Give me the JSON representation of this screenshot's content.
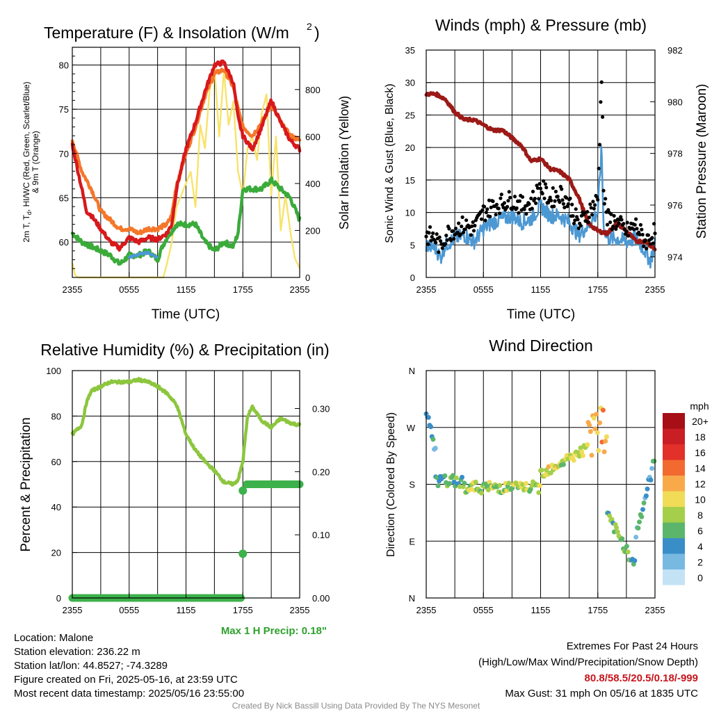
{
  "panels": {
    "temp": {
      "title": "Temperature (F) & Insolation (W/m²)",
      "left_label": "2m T, Td, HI/WC (Red, Green, Scarlet/Blue) & 9m T (Orange)",
      "left_label_line1": "2m T, T",
      "left_label_sub": "d",
      "left_label_rest": ", HI/WC (Red, Green, Scarlet/Blue)",
      "left_label_line2": "& 9m T (Orange)",
      "right_label": "Solar Insolation (Yellow)",
      "xlabel": "Time (UTC)"
    },
    "wind": {
      "title": "Winds (mph) & Pressure (mb)",
      "left_label": "Sonic Wind & Gust (Blue, Black)",
      "right_label": "Station Pressure (Maroon)",
      "xlabel": "Time (UTC)"
    },
    "rh": {
      "title": "Relative Humidity (%) & Precipitation (in)",
      "left_label": "Percent & Precipitation",
      "max_precip": "Max 1 H Precip: 0.18\""
    },
    "dir": {
      "title": "Wind Direction",
      "left_label": "Direction (Colored By Speed)",
      "legend_title": "mph"
    }
  },
  "footer": {
    "location": "Location: Malone",
    "elevation": "Station elevation: 236.22 m",
    "latlon": "Station lat/lon: 44.8527; -74.3289",
    "created": "Figure created on Fri, 2025-05-16, at 23:59 UTC",
    "recent": "Most recent data timestamp: 2025/05/16 23:55:00",
    "extremes_title": "Extremes For Past 24 Hours",
    "extremes_sub": "(High/Low/Max Wind/Precipitation/Snow Depth)",
    "extremes_values": "80.8/58.5/20.5/0.18/-999",
    "max_gust": "Max Gust: 31 mph On 05/16 at 1835 UTC",
    "credit": "Created By Nick Bassill Using Data Provided By The NYS Mesonet"
  },
  "colors": {
    "temp": "#d7191c",
    "temp9m": "#f4772a",
    "dewpoint": "#3aab3a",
    "solar": "#f7e36a",
    "wind": "#4c98d3",
    "gust": "#000000",
    "pressure": "#9b1a17",
    "rh": "#8cc63e",
    "precip": "#3db14b"
  },
  "chart_data": [
    {
      "type": "line",
      "panel": "temp",
      "title": "Temperature (F) & Insolation (W/m²)",
      "xlabel": "Time (UTC)",
      "ylabel": "2m T, Td, HI/WC (Red, Green, Scarlet/Blue) & 9m T (Orange)",
      "y2label": "Solar Insolation (Yellow)",
      "x_ticks": [
        "2355",
        "0555",
        "1155",
        "1755",
        "2355"
      ],
      "xlim": [
        0,
        24
      ],
      "ylim": [
        56,
        82
      ],
      "y_ticks": [
        60,
        65,
        70,
        75,
        80
      ],
      "y2lim": [
        0,
        980
      ],
      "y2_ticks": [
        0,
        200,
        400,
        600,
        800
      ],
      "grid": true,
      "series": [
        {
          "name": "2m T",
          "axis": "left",
          "x": [
            0,
            1,
            1.5,
            2,
            3,
            4,
            5,
            6,
            7,
            8,
            9,
            10,
            10.5,
            11,
            12,
            13,
            14,
            15,
            16,
            17,
            17.5,
            18,
            19,
            20,
            21,
            22,
            23,
            24
          ],
          "values": [
            71,
            66,
            63.5,
            63,
            61.5,
            60,
            59.3,
            60.5,
            60,
            60.5,
            60.3,
            61,
            62,
            66,
            70.5,
            73.5,
            77,
            80,
            80.3,
            78,
            74,
            72,
            70.5,
            73,
            76,
            73.5,
            71.5,
            70.5
          ]
        },
        {
          "name": "9m T",
          "axis": "left",
          "x": [
            0,
            1,
            2,
            3,
            4,
            5,
            6,
            7,
            8,
            9,
            10,
            10.5,
            11,
            12,
            13,
            14,
            15,
            16,
            17,
            17.5,
            18,
            19,
            20,
            21,
            22,
            23,
            24
          ],
          "values": [
            71.5,
            68,
            66,
            63.5,
            62.5,
            61.5,
            61.5,
            61,
            61.5,
            61.5,
            62,
            63,
            66.5,
            70,
            73,
            76.5,
            79,
            79.5,
            77.5,
            75,
            73,
            72,
            73.5,
            75.5,
            73.5,
            72,
            71.5
          ]
        },
        {
          "name": "Td",
          "axis": "left",
          "x": [
            0,
            1,
            2,
            3,
            4,
            5,
            6,
            7,
            8,
            9,
            9.5,
            10,
            11,
            12,
            13,
            14,
            15,
            16,
            17,
            17.5,
            18,
            19,
            20,
            21,
            22,
            23,
            24
          ],
          "values": [
            61,
            60,
            59.5,
            59,
            58.5,
            57.5,
            58.5,
            58.5,
            59,
            58,
            59.5,
            60.5,
            62,
            62,
            62,
            60,
            59,
            60,
            59.5,
            61,
            66,
            66,
            66,
            67,
            66,
            65,
            62.5
          ]
        },
        {
          "name": "HI/WC",
          "axis": "left",
          "x": [
            6,
            7,
            8,
            9
          ],
          "values": [
            58.3,
            58.6,
            58.8,
            58.2
          ]
        },
        {
          "name": "Solar",
          "axis": "right",
          "x": [
            0,
            0.3,
            0.6,
            1,
            3,
            5,
            7,
            9,
            9.6,
            10,
            10.5,
            11,
            11.5,
            12,
            12.5,
            13,
            13.5,
            14,
            14.5,
            15,
            15.5,
            16,
            16.5,
            17,
            17.5,
            18,
            18.5,
            19,
            19.5,
            20,
            20.5,
            21,
            21.5,
            22,
            22.5,
            23,
            23.5,
            24
          ],
          "values": [
            60,
            10,
            0,
            0,
            0,
            0,
            0,
            0,
            0,
            60,
            150,
            300,
            350,
            400,
            450,
            300,
            650,
            550,
            800,
            900,
            600,
            880,
            650,
            750,
            450,
            350,
            550,
            600,
            500,
            700,
            780,
            350,
            600,
            200,
            350,
            200,
            80,
            40
          ]
        }
      ]
    },
    {
      "type": "line",
      "panel": "wind",
      "title": "Winds (mph) & Pressure (mb)",
      "xlabel": "Time (UTC)",
      "ylabel": "Sonic Wind & Gust (Blue, Black)",
      "y2label": "Station Pressure (Maroon)",
      "x_ticks": [
        "2355",
        "0555",
        "1155",
        "1755",
        "2355"
      ],
      "xlim": [
        0,
        24
      ],
      "ylim": [
        0,
        35
      ],
      "y_ticks": [
        0,
        5,
        10,
        15,
        20,
        25,
        30,
        35
      ],
      "y2lim": [
        973.2,
        982
      ],
      "y2_ticks": [
        974,
        976,
        978,
        980,
        982
      ],
      "grid": true,
      "series": [
        {
          "name": "Sonic Wind",
          "axis": "left",
          "x": [
            0,
            1,
            1.5,
            2,
            3,
            4,
            5,
            6,
            7,
            8,
            9,
            10,
            11,
            12,
            13,
            14,
            15,
            16,
            17,
            18,
            18.4,
            18.6,
            19,
            20,
            21,
            22,
            23,
            23.5,
            24
          ],
          "values": [
            5,
            4.5,
            3,
            5,
            6,
            6.5,
            5.5,
            7.5,
            8.5,
            9,
            9.5,
            8.5,
            9,
            11,
            9.5,
            9.5,
            8.5,
            6.5,
            8,
            10,
            20,
            8,
            6,
            6,
            5.5,
            6,
            4,
            2.5,
            5
          ]
        },
        {
          "name": "Gust",
          "axis": "left",
          "x": [
            0,
            1,
            1.5,
            2,
            3,
            4,
            5,
            6,
            7,
            8,
            9,
            10,
            11,
            12,
            13,
            14,
            15,
            16,
            17,
            18,
            18.4,
            18.5,
            18.6,
            19,
            20,
            21,
            22,
            23,
            24
          ],
          "values": [
            6.5,
            6,
            4.5,
            6.5,
            7.5,
            8,
            7.5,
            10,
            11,
            11.5,
            12,
            11,
            11.5,
            14,
            12,
            13,
            11.5,
            8,
            10,
            12,
            31,
            26,
            13,
            9,
            8.5,
            7,
            8,
            5.5,
            7
          ]
        },
        {
          "name": "Pressure",
          "axis": "right",
          "x": [
            0,
            1,
            2,
            3,
            4,
            5,
            6,
            7,
            8,
            9,
            10,
            11,
            12,
            13,
            14,
            15,
            16,
            17,
            18,
            19,
            20,
            21,
            22,
            23,
            24
          ],
          "values": [
            980.3,
            980.3,
            980.1,
            979.6,
            979.3,
            979.3,
            979.1,
            978.9,
            978.9,
            978.6,
            978.3,
            977.7,
            977.8,
            977.4,
            977.3,
            977,
            976.3,
            975.3,
            975,
            974.9,
            975.3,
            975,
            974.6,
            974.6,
            974.3
          ]
        }
      ]
    },
    {
      "type": "line",
      "panel": "rh",
      "title": "Relative Humidity (%) & Precipitation (in)",
      "ylabel": "Percent & Precipitation",
      "x_ticks": [
        "2355",
        "0555",
        "1155",
        "1755",
        "2355"
      ],
      "xlim": [
        0,
        24
      ],
      "ylim": [
        0,
        100
      ],
      "y_ticks": [
        0,
        20,
        40,
        60,
        80,
        100
      ],
      "y2lim": [
        0,
        0.36
      ],
      "y2_ticks": [
        "0.00",
        "0.10",
        "0.20",
        "0.30"
      ],
      "grid": true,
      "series": [
        {
          "name": "RH",
          "axis": "left",
          "x": [
            0,
            1,
            1.5,
            2,
            3,
            4,
            5,
            6,
            7,
            8,
            9,
            10,
            11,
            12,
            13,
            14,
            15,
            16,
            17,
            17.5,
            18,
            18.5,
            19,
            20,
            21,
            22,
            23,
            24
          ],
          "values": [
            72,
            76,
            86,
            91,
            93,
            95,
            95,
            95,
            96,
            95,
            93,
            90,
            85,
            72,
            65,
            60,
            56,
            51,
            50,
            52,
            60,
            80,
            84,
            78,
            75,
            79,
            77,
            76
          ]
        },
        {
          "name": "Precip",
          "axis": "right",
          "x": [
            0,
            17.8,
            18,
            18.2,
            24
          ],
          "values": [
            0,
            0,
            0.07,
            0.17,
            0.18
          ]
        }
      ],
      "annotation": "Max 1 H Precip: 0.18\""
    },
    {
      "type": "scatter",
      "panel": "dir",
      "title": "Wind Direction",
      "ylabel": "Direction (Colored By Speed)",
      "x_ticks": [
        "2355",
        "0555",
        "1155",
        "1755",
        "2355"
      ],
      "y_ticks": [
        "N",
        "E",
        "S",
        "W",
        "N"
      ],
      "ylim": [
        0,
        360
      ],
      "legend_title": "mph",
      "legend": [
        "20+",
        "18",
        "16",
        "14",
        "12",
        "10",
        "8",
        "6",
        "4",
        "2",
        "0"
      ],
      "legend_colors": [
        "#a50f15",
        "#c81e24",
        "#e2302a",
        "#f26a30",
        "#f8aa4b",
        "#f0dc57",
        "#a5cf4a",
        "#5bb66b",
        "#3a8ec8",
        "#78b9e2",
        "#c3e3f5"
      ],
      "points_ranges": [
        {
          "x": [
            0,
            1
          ],
          "dir": [
            235,
            295
          ],
          "speed": 4
        },
        {
          "x": [
            1,
            4
          ],
          "dir": [
            175,
            195
          ],
          "speed": 6
        },
        {
          "x": [
            4,
            12
          ],
          "dir": [
            160,
            190
          ],
          "speed": 8
        },
        {
          "x": [
            12,
            17
          ],
          "dir": [
            175,
            240
          ],
          "speed": 9
        },
        {
          "x": [
            17,
            19
          ],
          "dir": [
            220,
            330
          ],
          "speed": 11
        },
        {
          "x": [
            19,
            22
          ],
          "dir": [
            50,
            130
          ],
          "speed": 6
        },
        {
          "x": [
            22,
            24
          ],
          "dir": [
            100,
            220
          ],
          "speed": 4
        }
      ]
    }
  ]
}
